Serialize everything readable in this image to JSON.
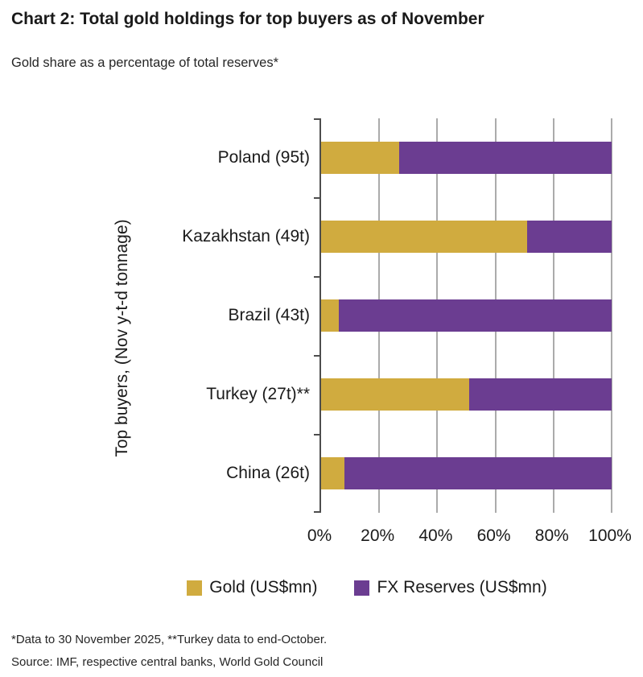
{
  "header": {
    "title": "Chart 2: Total gold holdings for top buyers as of November",
    "subtitle": "Gold share as a percentage of total reserves*"
  },
  "chart_data": {
    "type": "bar",
    "orientation": "horizontal",
    "stacked": true,
    "title": "Chart 2: Total gold holdings for top buyers as of November",
    "subtitle": "Gold share as a percentage of total reserves*",
    "ylabel": "Top buyers, (Nov y-t-d tonnage)",
    "xlabel": "",
    "categories": [
      "Poland (95t)",
      "Kazakhstan (49t)",
      "Brazil (43t)",
      "Turkey (27t)**",
      "China (26t)"
    ],
    "series": [
      {
        "name": "Gold (US$mn)",
        "color": "#D0AB3F",
        "values": [
          27,
          71,
          6,
          51,
          8
        ]
      },
      {
        "name": "FX Reserves (US$mn)",
        "color": "#6B3D91",
        "values": [
          73,
          29,
          94,
          49,
          92
        ]
      }
    ],
    "x_ticks": [
      "0%",
      "20%",
      "40%",
      "60%",
      "80%",
      "100%"
    ],
    "xlim": [
      0,
      100
    ],
    "grid": true,
    "legend_position": "bottom"
  },
  "footer": {
    "note": "*Data to 30 November 2025, **Turkey data to end-October.",
    "source": "Source: IMF, respective central banks, World Gold Council"
  },
  "colors": {
    "gold": "#D0AB3F",
    "purple": "#6B3D91",
    "gridline": "#ABABAB",
    "axis": "#4D4D4D",
    "text": "#1A1A1A"
  }
}
